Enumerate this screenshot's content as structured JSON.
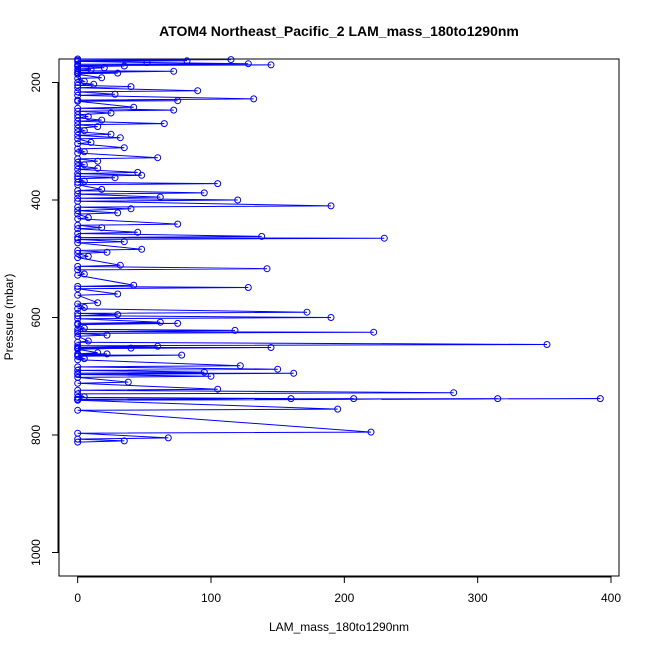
{
  "chart_data": {
    "type": "line",
    "title": "ATOM4 Northeast_Pacific_2 LAM_mass_180to1290nm",
    "xlabel": "LAM_mass_180to1290nm",
    "ylabel": "Pressure (mbar)",
    "xlim": [
      -14,
      406
    ],
    "ylim": [
      1040,
      160
    ],
    "y_reversed": true,
    "x_ticks": [
      0,
      100,
      200,
      300,
      400
    ],
    "y_ticks": [
      200,
      400,
      600,
      800,
      1000
    ],
    "grid": false,
    "legend": "none",
    "marker": "open-circle",
    "color": "#0000ff",
    "series": [
      {
        "points": [
          [
            0,
            160
          ],
          [
            115,
            161
          ],
          [
            0,
            162
          ],
          [
            82,
            163
          ],
          [
            0,
            164
          ],
          [
            52,
            166
          ],
          [
            128,
            168
          ],
          [
            0,
            169
          ],
          [
            145,
            170
          ],
          [
            0,
            171
          ],
          [
            35,
            172
          ],
          [
            0,
            173
          ],
          [
            20,
            175
          ],
          [
            0,
            177
          ],
          [
            10,
            178
          ],
          [
            0,
            180
          ],
          [
            72,
            181
          ],
          [
            0,
            183
          ],
          [
            30,
            184
          ],
          [
            0,
            185
          ],
          [
            0,
            186
          ],
          [
            18,
            192
          ],
          [
            0,
            193
          ],
          [
            5,
            198
          ],
          [
            0,
            200
          ],
          [
            12,
            203
          ],
          [
            0,
            205
          ],
          [
            40,
            207
          ],
          [
            0,
            209
          ],
          [
            90,
            214
          ],
          [
            0,
            216
          ],
          [
            28,
            220
          ],
          [
            0,
            222
          ],
          [
            132,
            228
          ],
          [
            0,
            230
          ],
          [
            75,
            231
          ],
          [
            0,
            232
          ],
          [
            42,
            242
          ],
          [
            0,
            244
          ],
          [
            72,
            247
          ],
          [
            0,
            249
          ],
          [
            25,
            252
          ],
          [
            0,
            255
          ],
          [
            8,
            258
          ],
          [
            0,
            260
          ],
          [
            18,
            264
          ],
          [
            0,
            266
          ],
          [
            65,
            270
          ],
          [
            0,
            272
          ],
          [
            15,
            275
          ],
          [
            0,
            278
          ],
          [
            5,
            282
          ],
          [
            0,
            284
          ],
          [
            25,
            288
          ],
          [
            0,
            290
          ],
          [
            32,
            294
          ],
          [
            0,
            296
          ],
          [
            10,
            302
          ],
          [
            0,
            304
          ],
          [
            35,
            311
          ],
          [
            0,
            313
          ],
          [
            5,
            318
          ],
          [
            0,
            320
          ],
          [
            60,
            328
          ],
          [
            0,
            330
          ],
          [
            15,
            334
          ],
          [
            0,
            336
          ],
          [
            5,
            340
          ],
          [
            0,
            342
          ],
          [
            15,
            346
          ],
          [
            0,
            348
          ],
          [
            45,
            353
          ],
          [
            0,
            355
          ],
          [
            48,
            358
          ],
          [
            0,
            360
          ],
          [
            28,
            362
          ],
          [
            0,
            364
          ],
          [
            5,
            368
          ],
          [
            0,
            370
          ],
          [
            105,
            372
          ],
          [
            0,
            374
          ],
          [
            18,
            382
          ],
          [
            0,
            384
          ],
          [
            95,
            388
          ],
          [
            0,
            390
          ],
          [
            62,
            395
          ],
          [
            0,
            397
          ],
          [
            120,
            400
          ],
          [
            0,
            402
          ],
          [
            190,
            410
          ],
          [
            0,
            412
          ],
          [
            40,
            415
          ],
          [
            0,
            418
          ],
          [
            30,
            422
          ],
          [
            0,
            424
          ],
          [
            8,
            430
          ],
          [
            0,
            432
          ],
          [
            75,
            441
          ],
          [
            0,
            443
          ],
          [
            18,
            447
          ],
          [
            0,
            449
          ],
          [
            45,
            455
          ],
          [
            0,
            457
          ],
          [
            138,
            462
          ],
          [
            0,
            464
          ],
          [
            230,
            465
          ],
          [
            0,
            467
          ],
          [
            35,
            471
          ],
          [
            0,
            473
          ],
          [
            48,
            484
          ],
          [
            0,
            486
          ],
          [
            22,
            489
          ],
          [
            0,
            491
          ],
          [
            8,
            496
          ],
          [
            0,
            498
          ],
          [
            32,
            511
          ],
          [
            0,
            513
          ],
          [
            142,
            517
          ],
          [
            0,
            519
          ],
          [
            5,
            526
          ],
          [
            0,
            528
          ],
          [
            42,
            545
          ],
          [
            0,
            547
          ],
          [
            128,
            549
          ],
          [
            0,
            551
          ],
          [
            30,
            560
          ],
          [
            0,
            562
          ],
          [
            15,
            575
          ],
          [
            0,
            577
          ],
          [
            5,
            583
          ],
          [
            0,
            585
          ],
          [
            172,
            591
          ],
          [
            0,
            593
          ],
          [
            30,
            595
          ],
          [
            0,
            597
          ],
          [
            190,
            600
          ],
          [
            0,
            602
          ],
          [
            62,
            608
          ],
          [
            0,
            610
          ],
          [
            75,
            610
          ],
          [
            0,
            612
          ],
          [
            5,
            618
          ],
          [
            0,
            620
          ],
          [
            118,
            622
          ],
          [
            0,
            624
          ],
          [
            222,
            625
          ],
          [
            0,
            627
          ],
          [
            22,
            630
          ],
          [
            0,
            632
          ],
          [
            8,
            640
          ],
          [
            0,
            642
          ],
          [
            352,
            646
          ],
          [
            0,
            648
          ],
          [
            60,
            649
          ],
          [
            0,
            651
          ],
          [
            145,
            651
          ],
          [
            0,
            653
          ],
          [
            40,
            652
          ],
          [
            0,
            654
          ],
          [
            15,
            660
          ],
          [
            0,
            662
          ],
          [
            22,
            662
          ],
          [
            0,
            664
          ],
          [
            78,
            664
          ],
          [
            0,
            666
          ],
          [
            5,
            670
          ],
          [
            0,
            672
          ],
          [
            122,
            682
          ],
          [
            0,
            684
          ],
          [
            150,
            688
          ],
          [
            0,
            690
          ],
          [
            95,
            693
          ],
          [
            0,
            695
          ],
          [
            162,
            695
          ],
          [
            0,
            697
          ],
          [
            100,
            700
          ],
          [
            0,
            702
          ],
          [
            38,
            710
          ],
          [
            0,
            712
          ],
          [
            105,
            722
          ],
          [
            0,
            724
          ],
          [
            282,
            728
          ],
          [
            0,
            730
          ],
          [
            5,
            735
          ],
          [
            0,
            736
          ],
          [
            160,
            738
          ],
          [
            0,
            739
          ],
          [
            207,
            738
          ],
          [
            0,
            740
          ],
          [
            315,
            738
          ],
          [
            0,
            740
          ],
          [
            392,
            738
          ],
          [
            0,
            741
          ],
          [
            195,
            756
          ],
          [
            0,
            758
          ],
          [
            220,
            795
          ],
          [
            0,
            797
          ],
          [
            68,
            805
          ],
          [
            0,
            807
          ],
          [
            35,
            810
          ],
          [
            0,
            812
          ]
        ]
      }
    ]
  }
}
